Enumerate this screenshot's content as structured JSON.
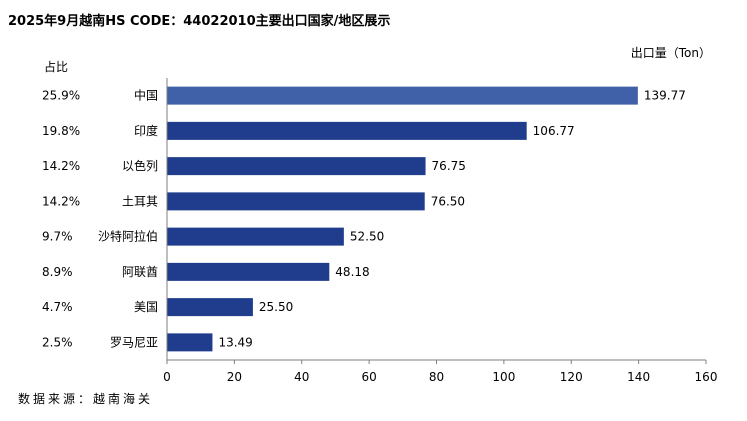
{
  "title": "2025年9月越南HS CODE：44022010主要出口国家/地区展示",
  "unit_label": "出口量（Ton）",
  "share_header": "占比",
  "source": "数据来源：越南海关",
  "colors": {
    "top_bar": "#4060A8",
    "bar": "#1F3D8C",
    "axis": "#7F7F7F"
  },
  "chart_data": {
    "type": "bar",
    "orientation": "horizontal",
    "categories": [
      "中国",
      "印度",
      "以色列",
      "土耳其",
      "沙特阿拉伯",
      "阿联酋",
      "美国",
      "罗马尼亚"
    ],
    "values": [
      139.77,
      106.77,
      76.75,
      76.5,
      52.5,
      48.18,
      25.5,
      13.49
    ],
    "value_labels": [
      "139.77",
      "106.77",
      "76.75",
      "76.50",
      "52.50",
      "48.18",
      "25.50",
      "13.49"
    ],
    "shares": [
      "25.9%",
      "19.8%",
      "14.2%",
      "14.2%",
      "9.7%",
      "8.9%",
      "4.7%",
      "2.5%"
    ],
    "xlim": [
      0,
      160
    ],
    "xticks": [
      "0",
      "20",
      "40",
      "60",
      "80",
      "100",
      "120",
      "140",
      "160"
    ],
    "grid": false,
    "legend": "none"
  }
}
